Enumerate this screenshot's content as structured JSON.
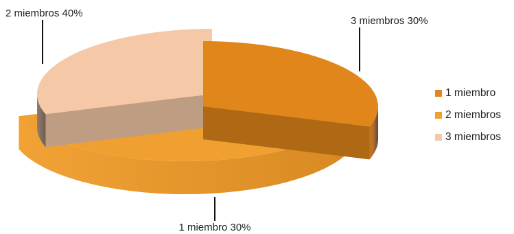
{
  "chart_data": {
    "type": "pie",
    "style": "3d-exploded",
    "slices": [
      {
        "label": "1 miembro",
        "value": 30,
        "color": "#E0861A",
        "data_label": "1 miembro 30%"
      },
      {
        "label": "2 miembros",
        "value": 40,
        "color": "#F0A030",
        "data_label": "2 miembros 40%"
      },
      {
        "label": "3 miembros",
        "value": 30,
        "color": "#F5C9A8",
        "data_label": "3 miembros 30%"
      }
    ],
    "legend": {
      "placement": "right",
      "items": [
        {
          "label": "1 miembro",
          "color": "#E0861A"
        },
        {
          "label": "2 miembros",
          "color": "#F0A030"
        },
        {
          "label": "3 miembros",
          "color": "#F5C9A8"
        }
      ]
    },
    "title": ""
  }
}
